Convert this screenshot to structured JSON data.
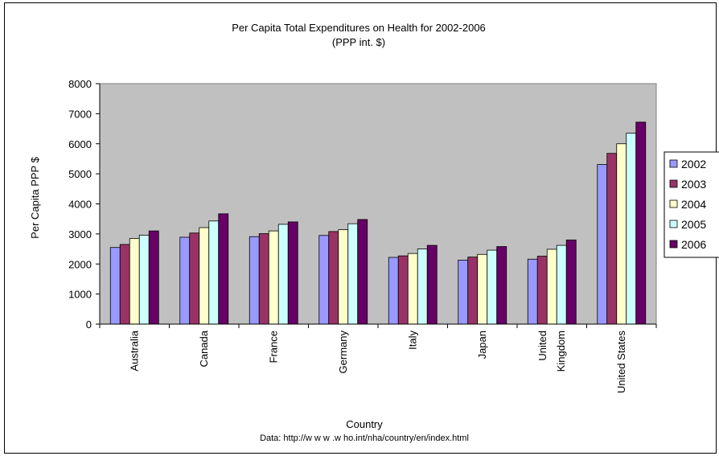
{
  "chart_data": {
    "type": "bar",
    "title": "Per Capita Total Expenditures on Health for 2002-2006",
    "subtitle": "(PPP int. $)",
    "xlabel": "Country",
    "ylabel": "Per Capita PPP $",
    "note": "Data: http://w w w .w ho.int/nha/country/en/index.html",
    "ylim": [
      0,
      8000
    ],
    "yticks": [
      "0",
      "1000",
      "2000",
      "3000",
      "4000",
      "5000",
      "6000",
      "7000",
      "8000"
    ],
    "categories": [
      [
        "Australia"
      ],
      [
        "Canada"
      ],
      [
        "France"
      ],
      [
        "Germany"
      ],
      [
        "Italy"
      ],
      [
        "Japan"
      ],
      [
        "United",
        "Kingdom"
      ],
      [
        "United States"
      ]
    ],
    "series": [
      {
        "name": "2002",
        "color": "#9999ff",
        "values": [
          2550,
          2890,
          2910,
          2950,
          2220,
          2130,
          2160,
          5310
        ]
      },
      {
        "name": "2003",
        "color": "#993366",
        "values": [
          2650,
          3030,
          3010,
          3080,
          2270,
          2230,
          2260,
          5680
        ]
      },
      {
        "name": "2004",
        "color": "#ffffcc",
        "values": [
          2850,
          3210,
          3100,
          3140,
          2350,
          2320,
          2490,
          6000
        ]
      },
      {
        "name": "2005",
        "color": "#ccffff",
        "values": [
          2960,
          3430,
          3320,
          3340,
          2500,
          2460,
          2620,
          6350
        ]
      },
      {
        "name": "2006",
        "color": "#660066",
        "values": [
          3100,
          3670,
          3400,
          3480,
          2620,
          2580,
          2800,
          6720
        ]
      }
    ],
    "plot_background": "#c0c0c0",
    "grid": false,
    "legend_position": "right"
  }
}
